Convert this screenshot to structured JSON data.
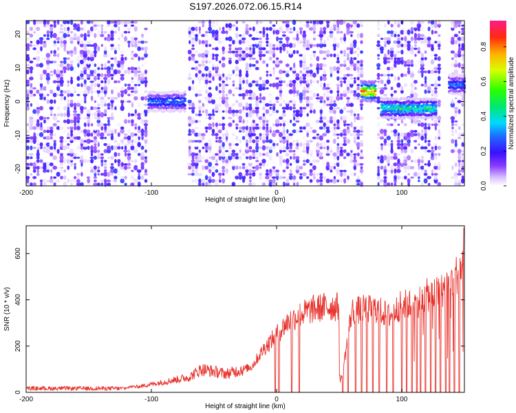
{
  "title": "S197.2026.072.06.15.R14",
  "chart_data": [
    {
      "type": "heatmap",
      "name": "spectrogram",
      "xlabel": "Height of straight line (km)",
      "ylabel": "Frequency (Hz)",
      "xlim": [
        -200,
        150
      ],
      "ylim": [
        -25,
        24
      ],
      "x_ticks": [
        -200,
        -100,
        0,
        100
      ],
      "x_tick_labels": [
        "-200",
        "-100",
        "0",
        "100"
      ],
      "y_ticks": [
        -20,
        -10,
        0,
        10,
        20
      ],
      "y_tick_labels": [
        "-20",
        "-10",
        "0",
        "10",
        "20"
      ],
      "colorbar": {
        "label": "Normalized spectral amplitude",
        "range": [
          0,
          0.95
        ],
        "ticks": [
          0.0,
          0.2,
          0.4,
          0.6,
          0.8
        ],
        "tick_labels": [
          "0.0",
          "0.2",
          "0.4",
          "0.6",
          "0.8"
        ],
        "colormap": "rainbow"
      },
      "blank_bands": [
        [
          -102,
          -72
        ],
        [
          68,
          80
        ],
        [
          130,
          138
        ]
      ],
      "signal_tracks": [
        {
          "x": [
            -102,
            -72
          ],
          "freq": 0,
          "amplitude": 0.3
        },
        {
          "x": [
            68,
            80
          ],
          "freq": 3,
          "amplitude": 0.85
        },
        {
          "x": [
            84,
            128
          ],
          "freq": -2,
          "amplitude": 0.45
        },
        {
          "x": [
            138,
            150
          ],
          "freq": 5,
          "amplitude": 0.3
        }
      ]
    },
    {
      "type": "line",
      "name": "snr",
      "xlabel": "Height of straight line (km)",
      "ylabel": "SNR (10 * v/v)",
      "xlim": [
        -200,
        150
      ],
      "ylim": [
        0,
        720
      ],
      "x_ticks": [
        -200,
        -100,
        0,
        100
      ],
      "x_tick_labels": [
        "-200",
        "-100",
        "0",
        "100"
      ],
      "y_ticks": [
        0,
        200,
        400,
        600
      ],
      "y_tick_labels": [
        "0",
        "200",
        "400",
        "600"
      ],
      "line_color": "#e8302a",
      "envelope": {
        "x": [
          -200,
          -150,
          -110,
          -90,
          -70,
          -60,
          -40,
          -20,
          -10,
          0,
          10,
          20,
          30,
          40,
          50,
          52,
          60,
          70,
          80,
          90,
          100,
          110,
          120,
          130,
          140,
          150
        ],
        "y": [
          15,
          18,
          25,
          45,
          65,
          100,
          80,
          110,
          190,
          250,
          310,
          340,
          360,
          370,
          370,
          60,
          350,
          360,
          360,
          330,
          380,
          380,
          420,
          430,
          480,
          560
        ]
      },
      "dropout_x": [
        -1,
        2,
        12,
        18,
        53,
        57,
        63,
        68,
        72,
        77,
        82,
        88,
        93,
        100,
        104,
        108,
        112,
        115,
        119,
        123,
        127,
        131,
        135,
        138,
        142,
        146
      ],
      "peak": {
        "x": 150,
        "y": 710
      }
    }
  ]
}
